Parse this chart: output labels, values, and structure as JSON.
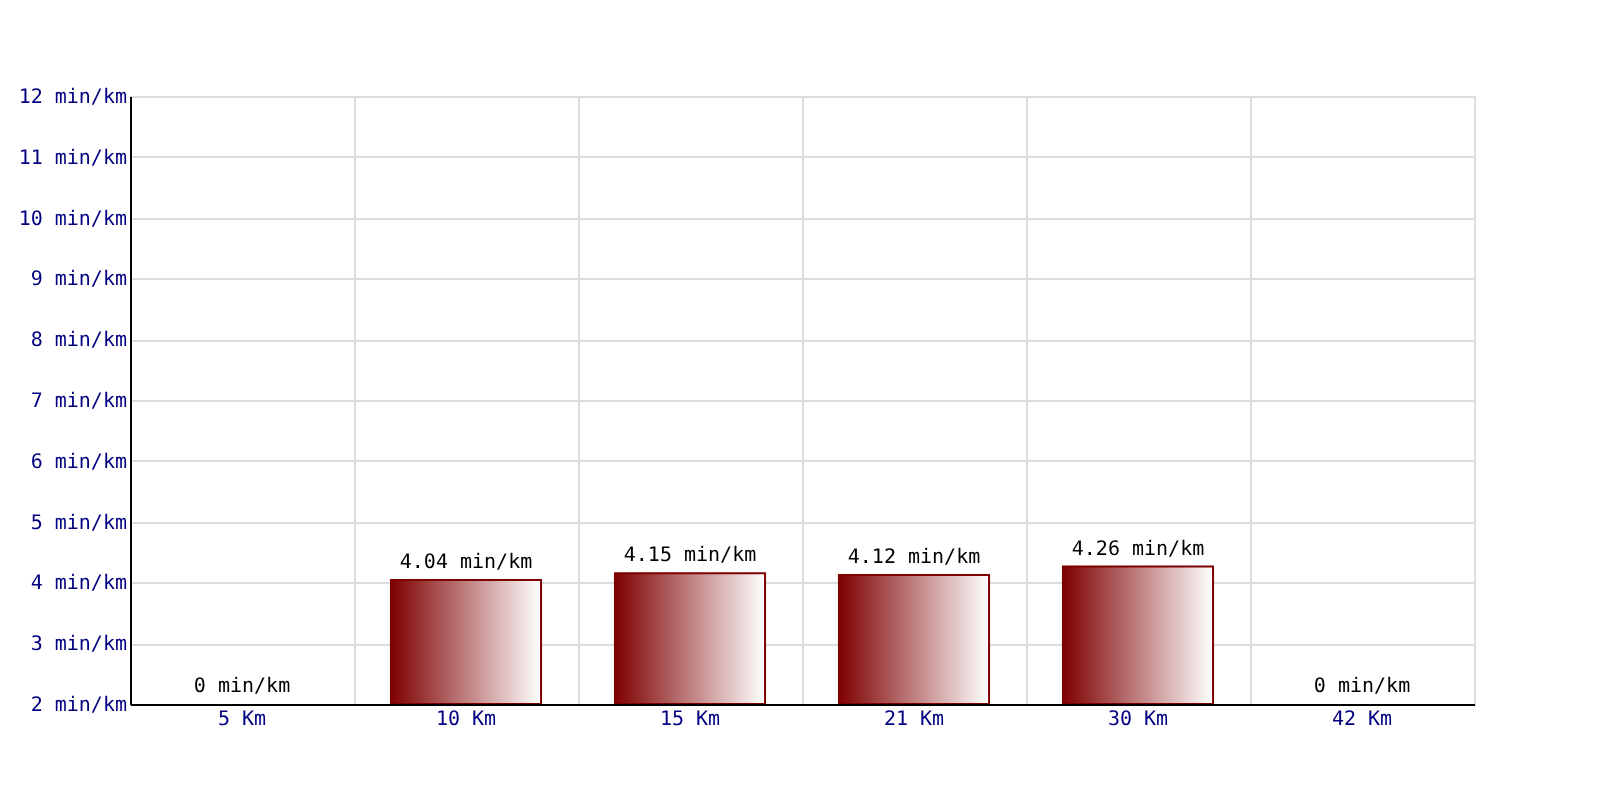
{
  "chart_data": {
    "type": "bar",
    "categories": [
      "5 Km",
      "10 Km",
      "15 Km",
      "21 Km",
      "30 Km",
      "42 Km"
    ],
    "values": [
      null,
      4.04,
      4.15,
      4.12,
      4.26,
      null
    ],
    "value_labels": [
      "0 min/km",
      "4.04 min/km",
      "4.15 min/km",
      "4.12 min/km",
      "4.26 min/km",
      "0 min/km"
    ],
    "color": "#7f0000",
    "ylim": [
      2,
      12
    ],
    "yticks": [
      {
        "value": 2,
        "label": "2 min/km"
      },
      {
        "value": 3,
        "label": "3 min/km"
      },
      {
        "value": 4,
        "label": "4 min/km"
      },
      {
        "value": 5,
        "label": "5 min/km"
      },
      {
        "value": 6,
        "label": "6 min/km"
      },
      {
        "value": 7,
        "label": "7 min/km"
      },
      {
        "value": 8,
        "label": "8 min/km"
      },
      {
        "value": 9,
        "label": "9 min/km"
      },
      {
        "value": 10,
        "label": "10 min/km"
      },
      {
        "value": 11,
        "label": "11 min/km"
      },
      {
        "value": 12,
        "label": "12 min/km"
      }
    ],
    "grid": true
  }
}
